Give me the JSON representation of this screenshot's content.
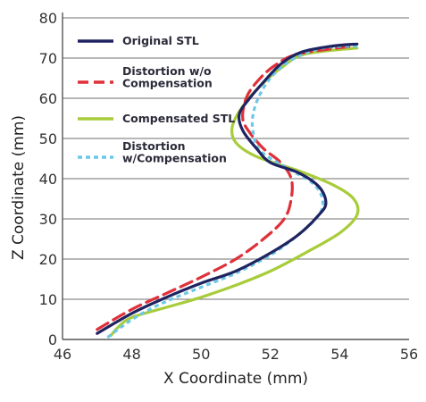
{
  "chart_data": {
    "type": "line",
    "xlabel": "X Coordinate (mm)",
    "ylabel": "Z Coordinate (mm)",
    "xlim": [
      46,
      56
    ],
    "ylim": [
      0,
      80
    ],
    "x_ticks": [
      46,
      48,
      50,
      52,
      54,
      56
    ],
    "y_ticks": [
      0,
      10,
      20,
      30,
      40,
      50,
      60,
      70,
      80
    ],
    "grid": "horizontal",
    "legend_position": "top-center",
    "series": [
      {
        "name": "Original STL",
        "color": "#1f2460",
        "dash": "solid",
        "points": [
          [
            47.0,
            1.5
          ],
          [
            48.0,
            6.5
          ],
          [
            49.0,
            10.5
          ],
          [
            50.0,
            14.0
          ],
          [
            51.0,
            17.0
          ],
          [
            52.0,
            21.5
          ],
          [
            52.8,
            26.0
          ],
          [
            53.4,
            31.0
          ],
          [
            53.6,
            34.0
          ],
          [
            53.4,
            38.0
          ],
          [
            52.8,
            41.5
          ],
          [
            52.0,
            44.0
          ],
          [
            51.6,
            47.5
          ],
          [
            51.2,
            52.0
          ],
          [
            51.1,
            56.0
          ],
          [
            51.4,
            60.0
          ],
          [
            51.8,
            64.0
          ],
          [
            52.3,
            68.5
          ],
          [
            52.9,
            71.5
          ],
          [
            53.8,
            73.0
          ],
          [
            54.5,
            73.5
          ]
        ]
      },
      {
        "name": "Distortion w/o Compensation",
        "color": "#e0303a",
        "dash": "dashed",
        "points": [
          [
            47.0,
            2.5
          ],
          [
            48.0,
            7.5
          ],
          [
            49.0,
            11.5
          ],
          [
            50.0,
            15.5
          ],
          [
            51.0,
            20.0
          ],
          [
            51.8,
            25.0
          ],
          [
            52.4,
            30.0
          ],
          [
            52.6,
            35.0
          ],
          [
            52.6,
            40.0
          ],
          [
            52.3,
            44.0
          ],
          [
            51.8,
            47.5
          ],
          [
            51.4,
            51.5
          ],
          [
            51.2,
            55.0
          ],
          [
            51.3,
            60.0
          ],
          [
            51.6,
            64.0
          ],
          [
            52.1,
            68.0
          ],
          [
            52.8,
            71.0
          ],
          [
            54.4,
            73.0
          ]
        ]
      },
      {
        "name": "Compensated STL",
        "color": "#a8cc3a",
        "dash": "solid",
        "points": [
          [
            47.4,
            1.0
          ],
          [
            47.6,
            3.0
          ],
          [
            48.0,
            5.5
          ],
          [
            49.0,
            8.0
          ],
          [
            50.0,
            10.5
          ],
          [
            51.0,
            13.5
          ],
          [
            52.0,
            17.0
          ],
          [
            53.0,
            21.5
          ],
          [
            54.0,
            26.5
          ],
          [
            54.5,
            31.0
          ],
          [
            54.4,
            35.0
          ],
          [
            53.8,
            38.5
          ],
          [
            52.8,
            42.0
          ],
          [
            51.6,
            45.5
          ],
          [
            51.0,
            49.0
          ],
          [
            50.9,
            53.0
          ],
          [
            51.2,
            58.0
          ],
          [
            51.7,
            63.0
          ],
          [
            52.3,
            67.5
          ],
          [
            53.0,
            71.0
          ],
          [
            54.5,
            72.5
          ]
        ]
      },
      {
        "name": "Distortion w/Compensation",
        "color": "#6cc8e6",
        "dash": "dotted",
        "points": [
          [
            47.3,
            0.5
          ],
          [
            47.6,
            2.5
          ],
          [
            48.2,
            6.0
          ],
          [
            49.0,
            9.5
          ],
          [
            50.0,
            13.0
          ],
          [
            51.0,
            16.5
          ],
          [
            52.0,
            21.0
          ],
          [
            52.8,
            26.0
          ],
          [
            53.4,
            31.0
          ],
          [
            53.5,
            35.0
          ],
          [
            53.2,
            39.0
          ],
          [
            52.4,
            43.0
          ],
          [
            51.7,
            47.0
          ],
          [
            51.5,
            51.5
          ],
          [
            51.5,
            56.0
          ],
          [
            51.7,
            61.0
          ],
          [
            52.1,
            66.0
          ],
          [
            52.7,
            70.0
          ],
          [
            53.5,
            72.5
          ],
          [
            54.5,
            73.0
          ]
        ]
      }
    ]
  }
}
